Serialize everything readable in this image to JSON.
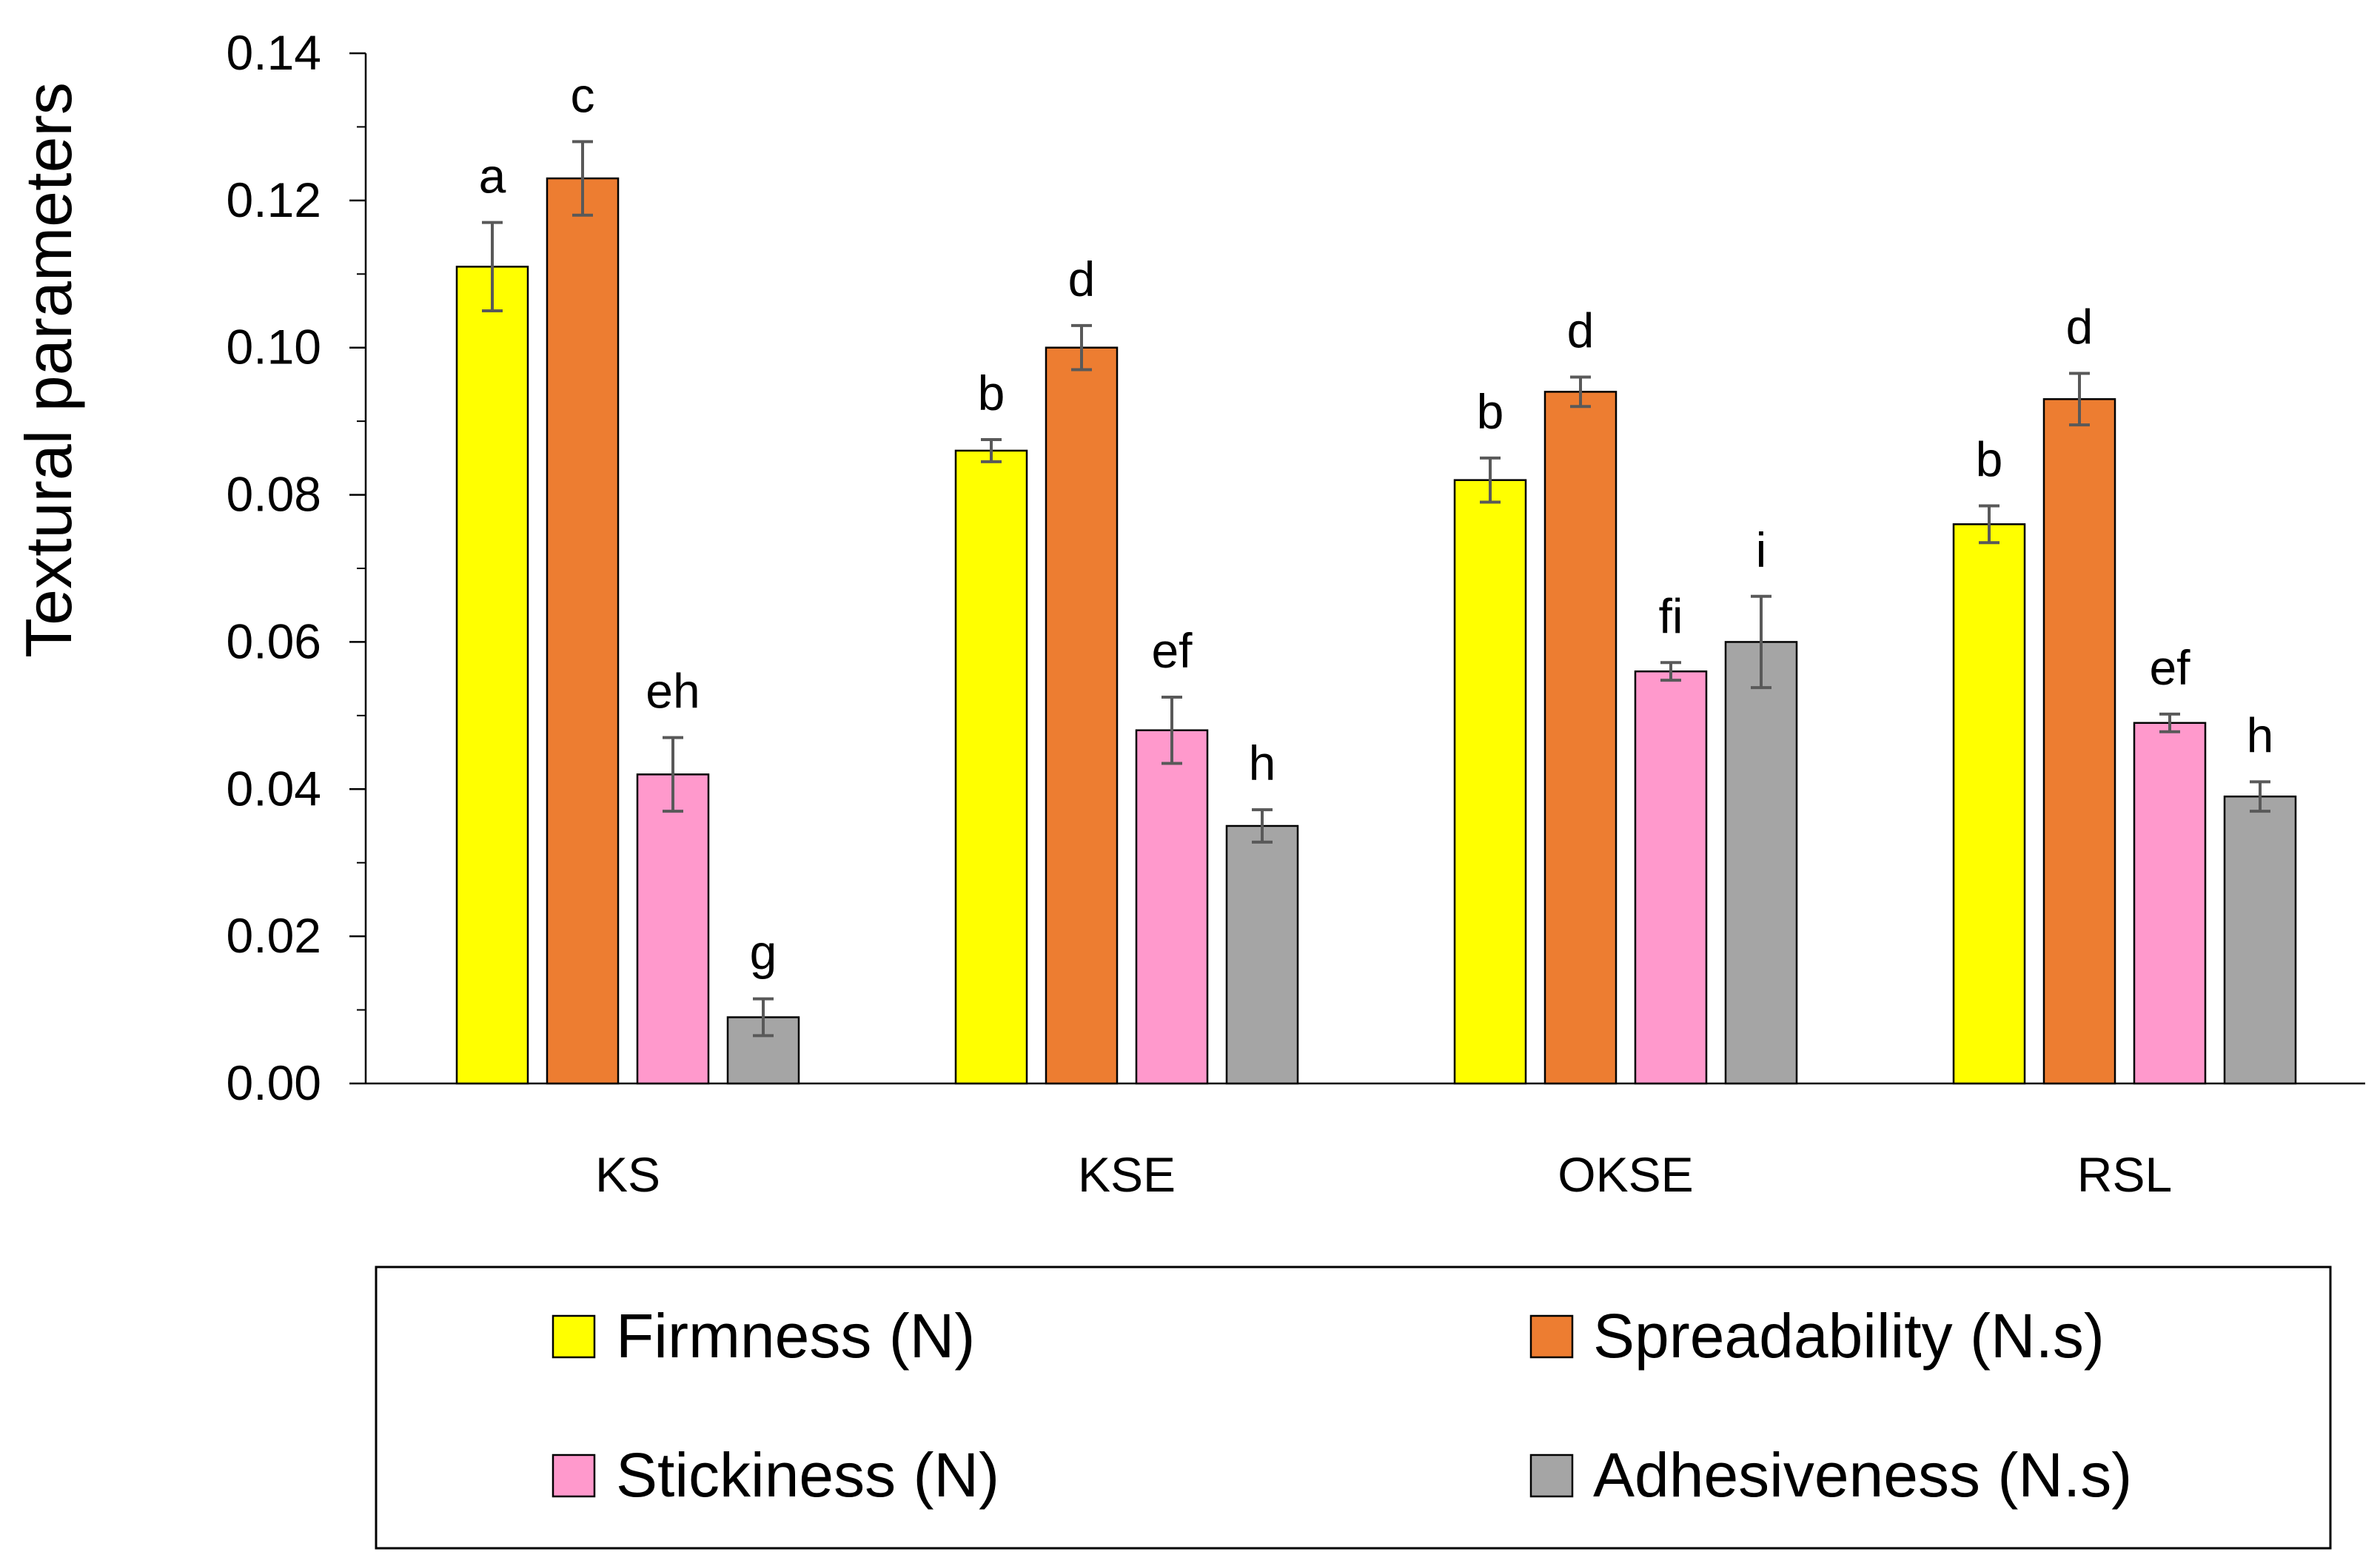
{
  "chart_data": {
    "type": "bar",
    "title": "",
    "xlabel": "",
    "ylabel": "Textural parameters",
    "ylim": [
      0,
      0.14
    ],
    "ytick_values": [
      0.0,
      0.02,
      0.04,
      0.06,
      0.08,
      0.1,
      0.12,
      0.14
    ],
    "ytick_labels": [
      "0.00",
      "0.02",
      "0.04",
      "0.06",
      "0.08",
      "0.10",
      "0.12",
      "0.14"
    ],
    "categories": [
      "KS",
      "KSE",
      "OKSE",
      "RSL"
    ],
    "legend_position": "bottom",
    "series": [
      {
        "name": "Firmness (N)",
        "color": "#ffff00",
        "values": [
          0.111,
          0.086,
          0.082,
          0.076
        ],
        "errors": [
          0.006,
          0.0015,
          0.003,
          0.0025
        ],
        "letters": [
          "a",
          "b",
          "b",
          "b"
        ]
      },
      {
        "name": "Spreadability (N.s)",
        "color": "#ed7d31",
        "values": [
          0.123,
          0.1,
          0.094,
          0.093
        ],
        "errors": [
          0.005,
          0.003,
          0.002,
          0.0035
        ],
        "letters": [
          "c",
          "d",
          "d",
          "d"
        ]
      },
      {
        "name": "Stickiness (N)",
        "color": "#ff99cc",
        "values": [
          0.042,
          0.048,
          0.056,
          0.049
        ],
        "errors": [
          0.005,
          0.0045,
          0.0012,
          0.0012
        ],
        "letters": [
          "eh",
          "ef",
          "fi",
          "ef"
        ]
      },
      {
        "name": "Adhesiveness (N.s)",
        "color": "#a5a5a5",
        "values": [
          0.009,
          0.035,
          0.06,
          0.039
        ],
        "errors": [
          0.0025,
          0.0022,
          0.0062,
          0.002
        ],
        "letters": [
          "g",
          "h",
          "i",
          "h"
        ]
      }
    ]
  }
}
